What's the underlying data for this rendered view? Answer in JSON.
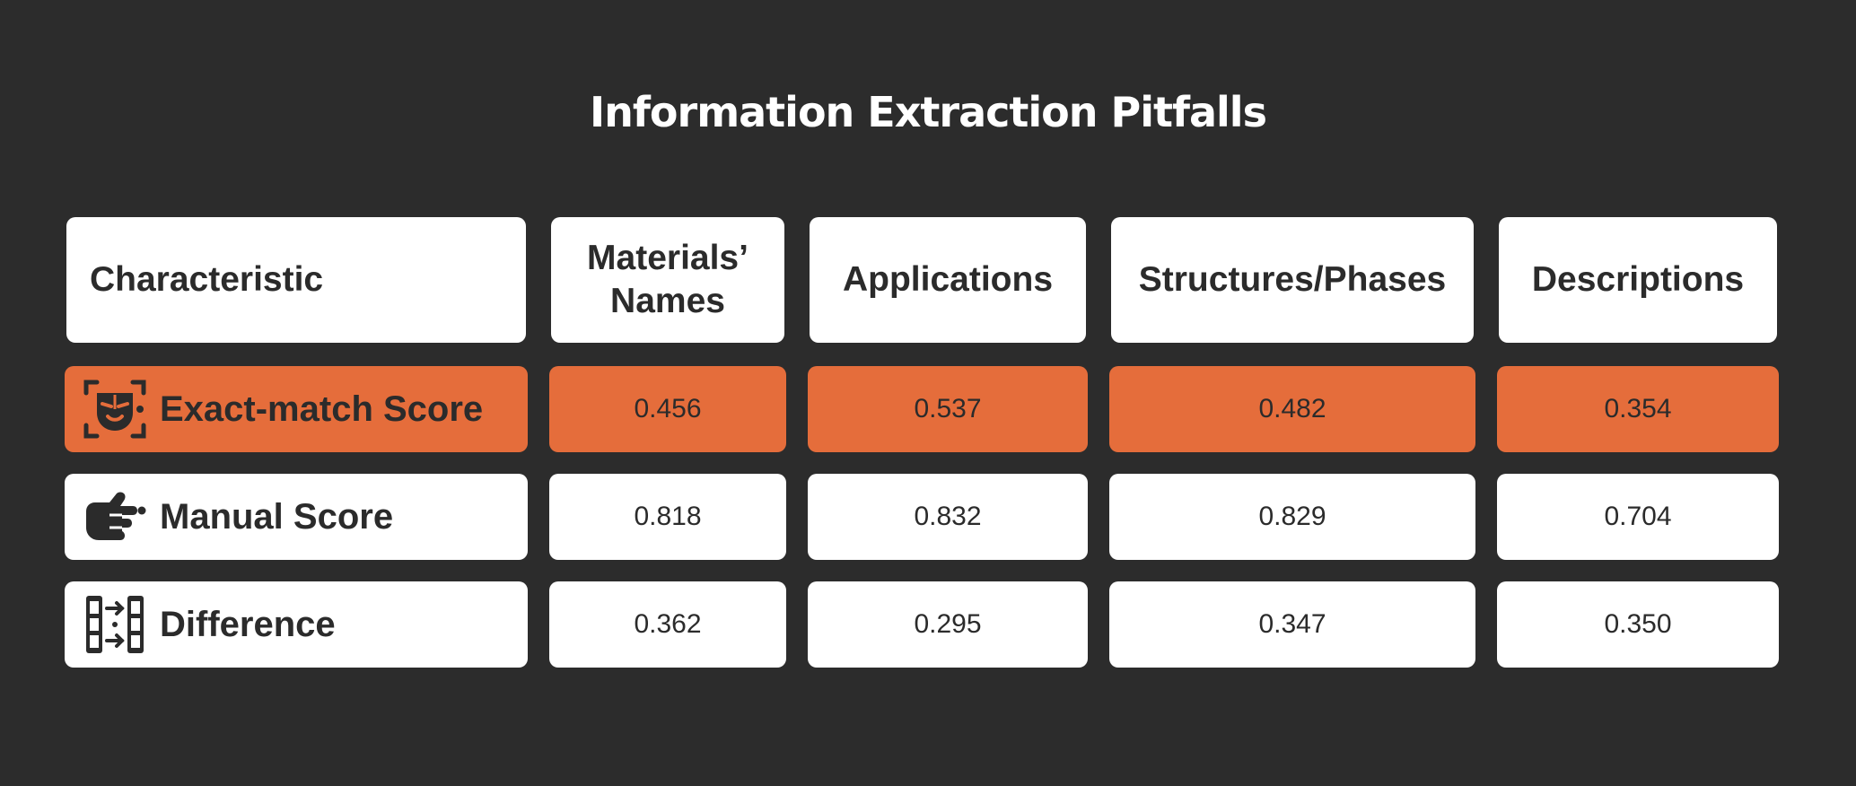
{
  "chart_data": {
    "type": "table",
    "title": "Information Extraction Pitfalls",
    "columns": [
      "Characteristic",
      "Materials’ Names",
      "Applications",
      "Structures/Phases",
      "Descriptions"
    ],
    "rows": [
      {
        "label": "Exact-match Score",
        "icon": "face-scan-icon",
        "highlight": true,
        "values": [
          "0.456",
          "0.537",
          "0.482",
          "0.354"
        ]
      },
      {
        "label": "Manual Score",
        "icon": "hand-pointing-icon",
        "highlight": false,
        "values": [
          "0.818",
          "0.832",
          "0.829",
          "0.704"
        ]
      },
      {
        "label": "Difference",
        "icon": "compare-columns-icon",
        "highlight": false,
        "values": [
          "0.362",
          "0.295",
          "0.347",
          "0.350"
        ]
      }
    ],
    "highlight_color": "#e56d3b",
    "background_color": "#2c2c2c"
  }
}
